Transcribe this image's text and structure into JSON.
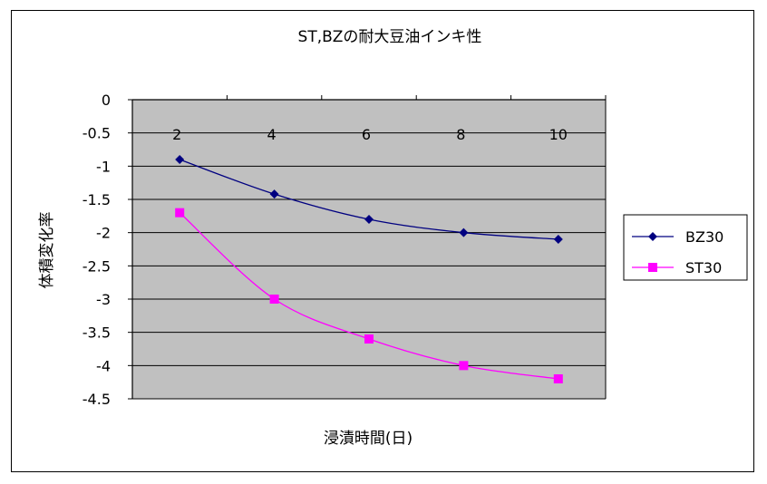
{
  "chart_data": {
    "type": "line",
    "title": "ST,BZの耐大豆油インキ性",
    "xlabel": "浸漬時間(日)",
    "ylabel": "体積変化率",
    "x": [
      2,
      4,
      6,
      8,
      10
    ],
    "x_tick_labels": [
      "2",
      "4",
      "6",
      "8",
      "10"
    ],
    "ylim": [
      -4.5,
      0
    ],
    "y_tick_labels": [
      "0",
      "-0.5",
      "-1",
      "-1.5",
      "-2",
      "-2.5",
      "-3",
      "-3.5",
      "-4",
      "-4.5"
    ],
    "grid": true,
    "legend_position": "right",
    "series": [
      {
        "name": "BZ30",
        "values": [
          -0.9,
          -1.42,
          -1.8,
          -2.0,
          -2.1
        ],
        "color": "#000080",
        "marker": "diamond"
      },
      {
        "name": "ST30",
        "values": [
          -1.7,
          -3.0,
          -3.6,
          -4.0,
          -4.2
        ],
        "color": "#FF00FF",
        "marker": "square"
      }
    ],
    "plot_background": "#C0C0C0"
  }
}
